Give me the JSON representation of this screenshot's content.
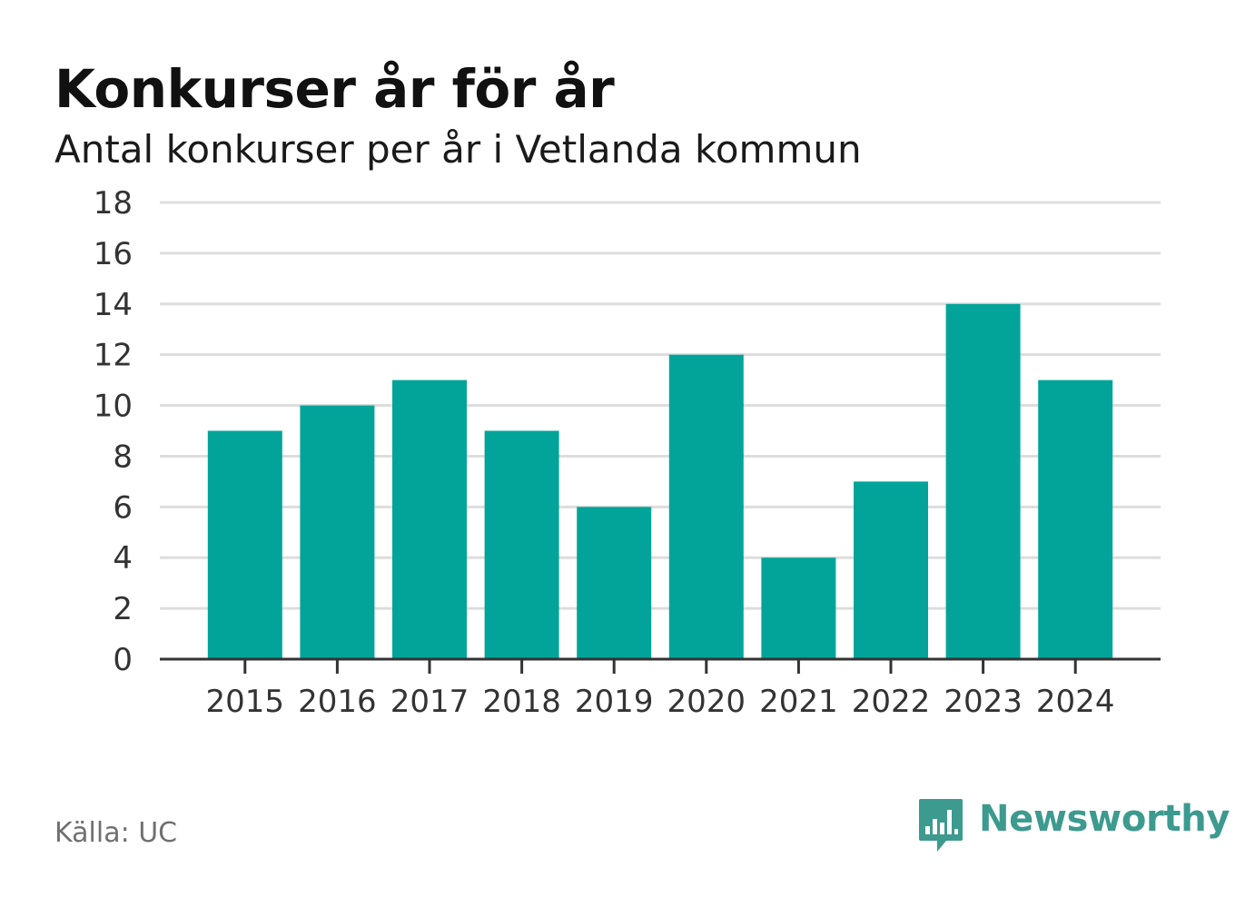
{
  "header": {
    "title": "Konkurser år för år",
    "subtitle": "Antal konkurser per år i Vetlanda kommun"
  },
  "footer": {
    "source": "Källa: UC",
    "brand": "Newsworthy"
  },
  "colors": {
    "bar": "#02a499",
    "grid": "#dddddd",
    "axis": "#333333",
    "brand": "#3d9a8f"
  },
  "icons": {
    "brand_logo": "newsworthy-logo-icon"
  },
  "chart_data": {
    "type": "bar",
    "categories": [
      "2015",
      "2016",
      "2017",
      "2018",
      "2019",
      "2020",
      "2021",
      "2022",
      "2023",
      "2024"
    ],
    "values": [
      9,
      10,
      11,
      9,
      6,
      12,
      4,
      7,
      14,
      11
    ],
    "yticks": [
      0,
      2,
      4,
      6,
      8,
      10,
      12,
      14,
      16,
      18
    ],
    "ylim": [
      0,
      18
    ],
    "grid": true,
    "legend": false,
    "xlabel": "",
    "ylabel": ""
  }
}
